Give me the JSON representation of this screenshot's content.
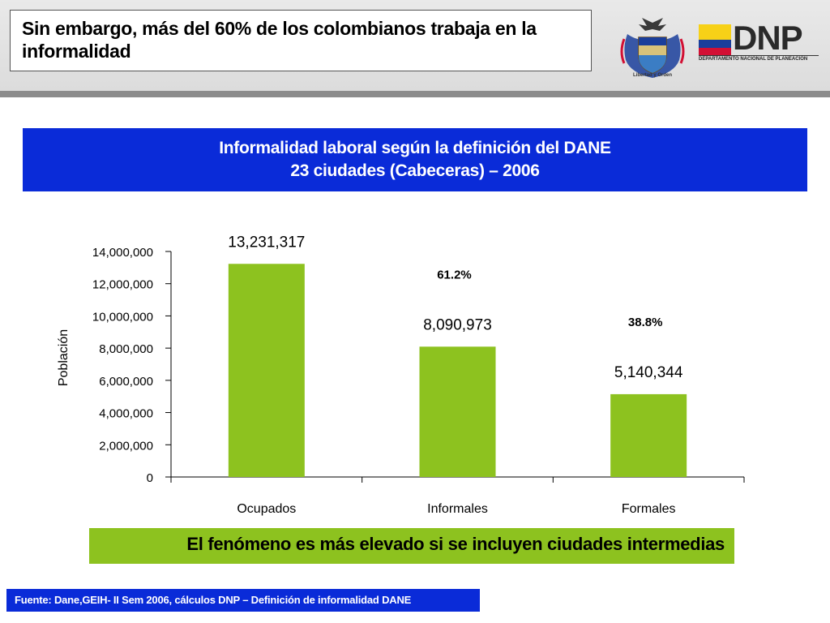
{
  "slide": {
    "title": "Sin embargo, más del 60% de los colombianos trabaja en la informalidad"
  },
  "logos": {
    "seal_caption": "Libertad y Orden",
    "dnp_name": "DNP",
    "dnp_subtitle": "DEPARTAMENTO NACIONAL DE PLANEACIÓN",
    "flag_colors": [
      "#f7d117",
      "#1a3e9b",
      "#d21034"
    ]
  },
  "chart_header": {
    "line1": "Informalidad laboral según la definición del DANE",
    "line2": "23 ciudades (Cabeceras) – 2006"
  },
  "chart_data": {
    "type": "bar",
    "categories": [
      "Ocupados",
      "Informales",
      "Formales"
    ],
    "values": [
      13231317,
      8090973,
      5140344
    ],
    "value_labels": [
      "13,231,317",
      "8,090,973",
      "5,140,344"
    ],
    "ylabel": "Población",
    "xlabel": "",
    "ylim": [
      0,
      14000000
    ],
    "yticks": [
      0,
      2000000,
      4000000,
      6000000,
      8000000,
      10000000,
      12000000,
      14000000
    ],
    "ytick_labels": [
      "0",
      "2,000,000",
      "4,000,000",
      "6,000,000",
      "8,000,000",
      "10,000,000",
      "12,000,000",
      "14,000,000"
    ],
    "annotations": [
      {
        "category": "Informales",
        "text": "61.2%"
      },
      {
        "category": "Formales",
        "text": "38.8%"
      }
    ],
    "bar_color": "#8dc21f",
    "grid": false
  },
  "note": {
    "text": "El fenómeno es más elevado si se incluyen ciudades intermedias"
  },
  "source": {
    "text": "Fuente: Dane,GEIH- II Sem 2006, cálculos DNP – Definición de informalidad DANE"
  }
}
